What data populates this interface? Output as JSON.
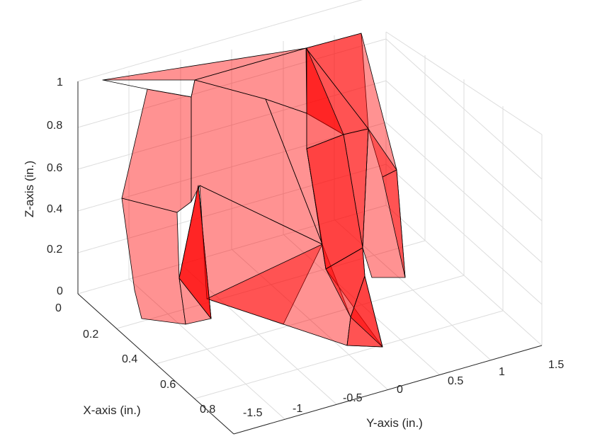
{
  "chart_data": {
    "type": "surface3d",
    "title": "",
    "xlabel": "X-axis (in.)",
    "ylabel": "Y-axis (in.)",
    "zlabel": "Z-axis (in.)",
    "xlim": [
      0,
      0.8
    ],
    "ylim": [
      -1.5,
      1.5
    ],
    "zlim": [
      0,
      1
    ],
    "x_ticks": [
      "0",
      "0.2",
      "0.4",
      "0.6",
      "0.8"
    ],
    "y_ticks": [
      "-1.5",
      "-1",
      "-0.5",
      "0",
      "0.5",
      "1",
      "1.5"
    ],
    "z_ticks": [
      "0",
      "0.2",
      "0.4",
      "0.6",
      "0.8",
      "1"
    ],
    "grid": true,
    "face_color": "#ff0000",
    "face_alpha": 0.45,
    "edge_color": "#000000",
    "series": [
      {
        "type": "mesh",
        "faces": 38
      }
    ]
  }
}
